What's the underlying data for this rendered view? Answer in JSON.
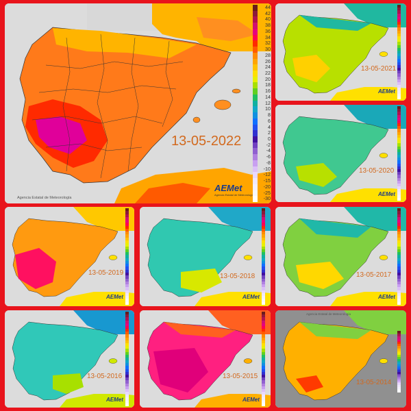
{
  "image": {
    "title": "",
    "background": "#e8141c"
  },
  "agency": "Agencia Estatal de Meteorología",
  "logo_text": "AEMet",
  "logo_sub": "Agencia Estatal de Meteorología",
  "legend_values": [
    "44",
    "42",
    "40",
    "38",
    "36",
    "34",
    "32",
    "30",
    "28",
    "26",
    "24",
    "22",
    "20",
    "18",
    "16",
    "14",
    "12",
    "10",
    "8",
    "6",
    "4",
    "2",
    "0",
    "-2",
    "-4",
    "-6",
    "-8",
    "-10",
    "-12",
    "-15",
    "-20",
    "-25",
    "-30"
  ],
  "legend_colors": [
    "#6a1b1b",
    "#8b1a3a",
    "#b0124e",
    "#d01070",
    "#e6007e",
    "#ff0050",
    "#ff2a00",
    "#ff5a00",
    "#ff8a00",
    "#ffa500",
    "#ffc200",
    "#ffe000",
    "#e8f000",
    "#a8e000",
    "#60d020",
    "#20c060",
    "#10b0a0",
    "#10a8c8",
    "#1090e0",
    "#1070ff",
    "#2050f0",
    "#3030d0",
    "#4010a0",
    "#7040c0",
    "#9060d0",
    "#b080e0",
    "#c8a0f0",
    "#dcc0f8",
    "#e8d8ff",
    "#f0e8ff",
    "#f4f0ff",
    "#f8f8ff",
    "#ffffff"
  ],
  "maps": [
    {
      "date": "13-05-2022",
      "mainland": "#ff7a1a",
      "hot": "#e0009a",
      "north": "#ffb400",
      "islands": "#ff8f20"
    },
    {
      "date": "13-05-2021",
      "mainland": "#b8e000",
      "hot": "#ffd000",
      "north": "#20b8a0",
      "islands": "#ffe000"
    },
    {
      "date": "13-05-2020",
      "mainland": "#40c890",
      "hot": "#b8e000",
      "north": "#1aa8b8",
      "islands": "#ffe000"
    },
    {
      "date": "13-05-2019",
      "mainland": "#ff9a10",
      "hot": "#ff1060",
      "north": "#ffc800",
      "islands": "#ffe000"
    },
    {
      "date": "13-05-2018",
      "mainland": "#30c8b0",
      "hot": "#d8e800",
      "north": "#20a8c8",
      "islands": "#ffe000"
    },
    {
      "date": "13-05-2017",
      "mainland": "#80d040",
      "hot": "#ffd800",
      "north": "#20b8a8",
      "islands": "#ffe000"
    },
    {
      "date": "13-05-2016",
      "mainland": "#30c8b8",
      "hot": "#a8e000",
      "north": "#1898d0",
      "islands": "#d0e800"
    },
    {
      "date": "13-05-2015",
      "mainland": "#ff2080",
      "hot": "#e0007a",
      "north": "#ff6020",
      "islands": "#ffb000"
    },
    {
      "date": "13-05-2014",
      "mainland": "#ffb000",
      "hot": "#ff3a00",
      "north": "#80d040",
      "islands": "#ffe000"
    }
  ]
}
